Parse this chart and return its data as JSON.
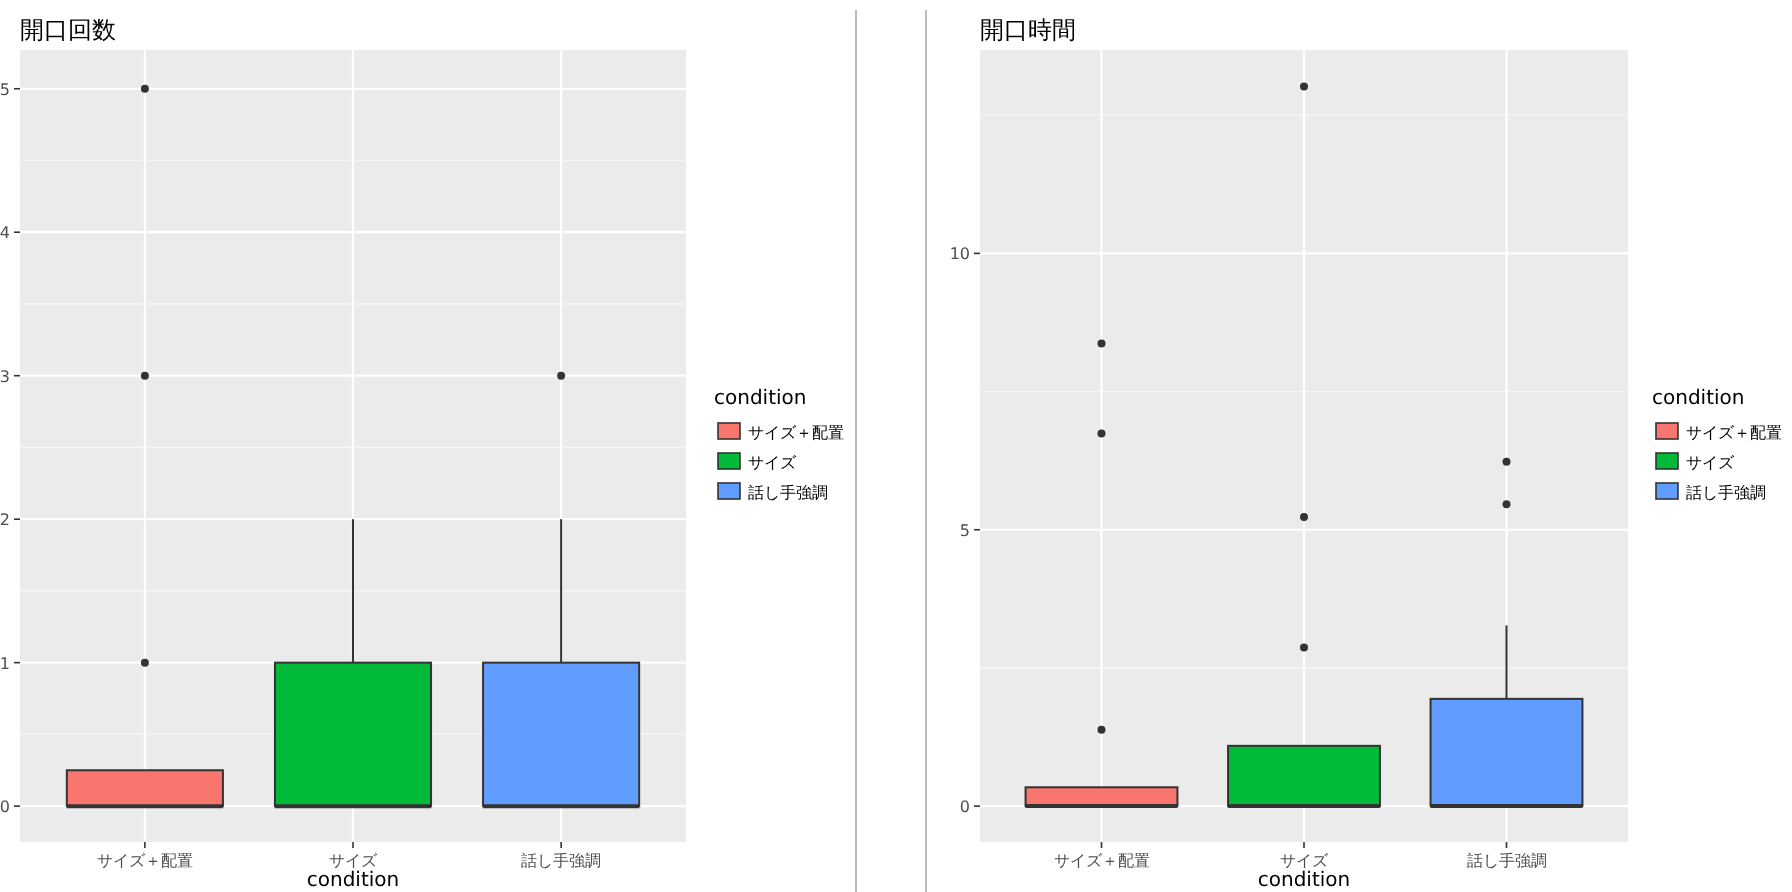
{
  "chart_data": [
    {
      "type": "box",
      "title": "開口回数",
      "xlabel": "condition",
      "legend_title": "condition",
      "categories": [
        "サイズ＋配置",
        "サイズ",
        "話し手強調"
      ],
      "series": [
        {
          "name": "サイズ＋配置",
          "color": "#f8766d",
          "boxes": [
            {
              "low": 0,
              "q1": 0,
              "median": 0,
              "q3": 0.25,
              "high": 0.25,
              "outliers": [
                1,
                3,
                5
              ]
            },
            null,
            null
          ]
        },
        {
          "name": "サイズ",
          "color": "#00ba38",
          "boxes": [
            null,
            {
              "low": 0,
              "q1": 0,
              "median": 0,
              "q3": 1,
              "high": 2
            },
            null
          ]
        },
        {
          "name": "話し手強調",
          "color": "#619cff",
          "boxes": [
            null,
            null,
            {
              "low": 0,
              "q1": 0,
              "median": 0,
              "q3": 1,
              "high": 2,
              "outliers": [
                3
              ]
            }
          ]
        }
      ],
      "ylim": [
        -0.25,
        5.27
      ],
      "yticks": [
        0,
        1,
        2,
        3,
        4,
        5
      ],
      "grid": true,
      "legend": "right"
    },
    {
      "type": "box",
      "title": "開口時間",
      "xlabel": "condition",
      "legend_title": "condition",
      "categories": [
        "サイズ＋配置",
        "サイズ",
        "話し手強調"
      ],
      "series": [
        {
          "name": "サイズ＋配置",
          "color": "#f8766d",
          "boxes": [
            {
              "low": 0,
              "q1": 0,
              "median": 0,
              "q3": 0.34,
              "high": 0.34,
              "outliers": [
                1.38,
                6.74,
                8.37
              ]
            },
            null,
            null
          ]
        },
        {
          "name": "サイズ",
          "color": "#00ba38",
          "boxes": [
            null,
            {
              "low": 0,
              "q1": 0,
              "median": 0,
              "q3": 1.09,
              "high": 1.09,
              "outliers": [
                2.87,
                5.23,
                13.02
              ]
            },
            null
          ]
        },
        {
          "name": "話し手強調",
          "color": "#619cff",
          "boxes": [
            null,
            null,
            {
              "low": 0,
              "q1": 0,
              "median": 0,
              "q3": 1.94,
              "high": 3.27,
              "outliers": [
                5.46,
                6.23
              ]
            }
          ]
        }
      ],
      "ylim": [
        -0.65,
        13.68
      ],
      "yticks": [
        0,
        5,
        10
      ],
      "grid": true,
      "legend": "right"
    }
  ]
}
